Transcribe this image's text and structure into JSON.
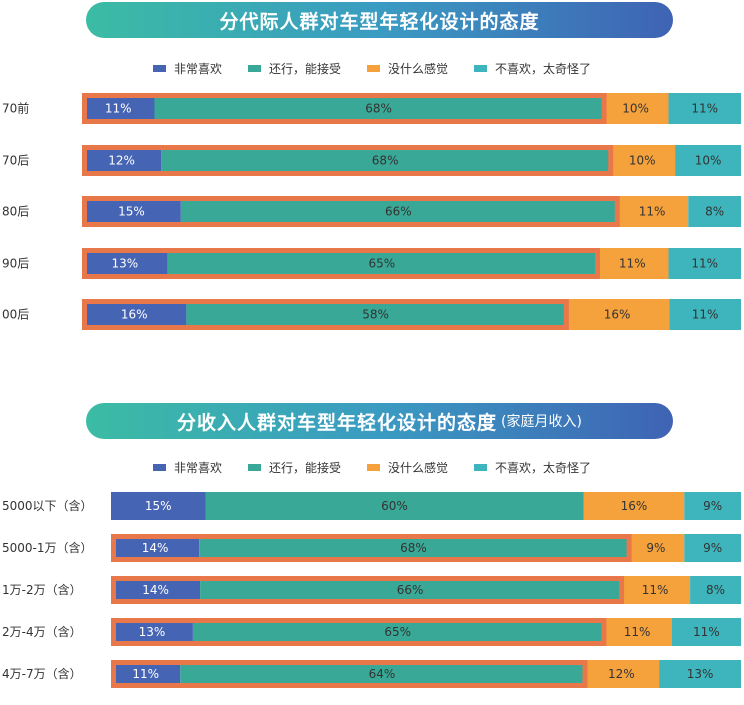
{
  "colors": {
    "very_like": "#4664b4",
    "ok_accept": "#3aa896",
    "no_feeling": "#f6a23c",
    "dislike": "#3eb5bc",
    "highlight": "#e8774a"
  },
  "legend": [
    "非常喜欢",
    "还行，能接受",
    "没什么感觉",
    "不喜欢，太奇怪了"
  ],
  "chart_data": [
    {
      "type": "bar",
      "orientation": "horizontal",
      "stacked": true,
      "normalized": true,
      "title": "分代际人群对车型年轻化设计的态度",
      "subtitle": "",
      "categories": [
        "70前",
        "70后",
        "80后",
        "90后",
        "00后"
      ],
      "series": [
        {
          "name": "非常喜欢",
          "values": [
            11,
            12,
            15,
            13,
            16
          ]
        },
        {
          "name": "还行，能接受",
          "values": [
            68,
            68,
            66,
            65,
            58
          ]
        },
        {
          "name": "没什么感觉",
          "values": [
            10,
            10,
            11,
            11,
            16
          ]
        },
        {
          "name": "不喜欢，太奇怪了",
          "values": [
            11,
            10,
            8,
            11,
            11
          ]
        }
      ],
      "value_labels": [
        [
          "11%",
          "68%",
          "10%",
          "11%"
        ],
        [
          "12%",
          "68%",
          "10%",
          "10%"
        ],
        [
          "15%",
          "66%",
          "11%",
          "8%"
        ],
        [
          "13%",
          "65%",
          "11%",
          "11%"
        ],
        [
          "16%",
          "58%",
          "16%",
          "11%"
        ]
      ],
      "highlighted": [
        true,
        true,
        true,
        true,
        true
      ],
      "xlim": [
        0,
        100
      ],
      "legend_position": "top",
      "grid": false
    },
    {
      "type": "bar",
      "orientation": "horizontal",
      "stacked": true,
      "normalized": true,
      "title": "分收入人群对车型年轻化设计的态度",
      "subtitle": "(家庭月收入)",
      "categories": [
        "5000以下（含）",
        "5000-1万（含）",
        "1万-2万（含）",
        "2万-4万（含）",
        "4万-7万（含）"
      ],
      "series": [
        {
          "name": "非常喜欢",
          "values": [
            15,
            14,
            14,
            13,
            11
          ]
        },
        {
          "name": "还行，能接受",
          "values": [
            60,
            68,
            66,
            65,
            64
          ]
        },
        {
          "name": "没什么感觉",
          "values": [
            16,
            9,
            11,
            11,
            12
          ]
        },
        {
          "name": "不喜欢，太奇怪了",
          "values": [
            9,
            9,
            8,
            11,
            13
          ]
        }
      ],
      "value_labels": [
        [
          "15%",
          "60%",
          "16%",
          "9%"
        ],
        [
          "14%",
          "68%",
          "9%",
          "9%"
        ],
        [
          "14%",
          "66%",
          "11%",
          "8%"
        ],
        [
          "13%",
          "65%",
          "11%",
          "11%"
        ],
        [
          "11%",
          "64%",
          "12%",
          "13%"
        ]
      ],
      "highlighted": [
        false,
        true,
        true,
        true,
        true
      ],
      "xlim": [
        0,
        100
      ],
      "legend_position": "top",
      "grid": false
    }
  ]
}
